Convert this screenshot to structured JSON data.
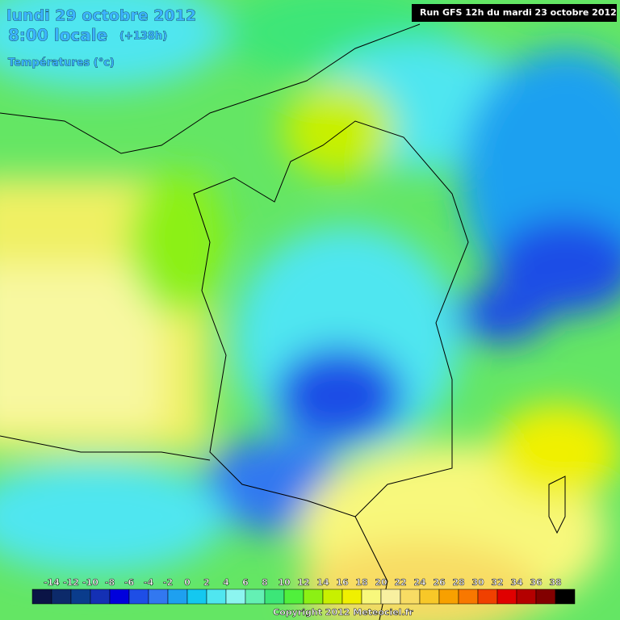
{
  "header": {
    "date": "lundi 29 octobre 2012",
    "time": "8:00 locale",
    "lead": "(+138h)",
    "variable": "Températures (°c)",
    "run": "Run GFS 12h du mardi 23 octobre 2012"
  },
  "legend": {
    "ticks": [
      -14,
      -12,
      -10,
      -8,
      -6,
      -4,
      -2,
      0,
      2,
      4,
      6,
      8,
      10,
      12,
      14,
      16,
      18,
      20,
      22,
      24,
      26,
      28,
      30,
      32,
      34,
      36,
      38
    ],
    "colors": [
      "#0a1446",
      "#0c2a6a",
      "#0a3c8c",
      "#1430b4",
      "#0000dc",
      "#1e4ee6",
      "#3278f0",
      "#1ea0f0",
      "#14c8f0",
      "#50e6f0",
      "#8cf5f0",
      "#64f0b4",
      "#3ce678",
      "#50f03c",
      "#8cf014",
      "#c8f000",
      "#f0f000",
      "#f8f87c",
      "#f8f0a0",
      "#f8dc64",
      "#f8c828",
      "#f8a000",
      "#f87800",
      "#f04000",
      "#e00000",
      "#b40000",
      "#820000",
      "#000000"
    ]
  },
  "footer": {
    "copyright": "Copyright 2012 Meteociel.fr"
  }
}
